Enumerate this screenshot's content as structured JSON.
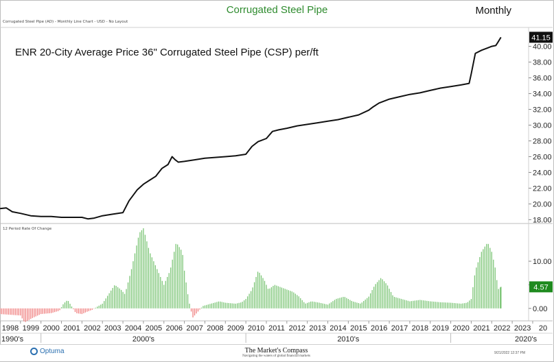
{
  "header": {
    "title": "Corrugated Steel Pipe",
    "frequency": "Monthly",
    "subcaption": "Corrugated Steel Pipe (AD) - Monthly Line Chart - USD - No Layout"
  },
  "footer": {
    "logo": "Optuma",
    "brand": "The Market's Compass",
    "tagline": "Navigating the waters of global financial markets",
    "timestamp": "9/21/2022 12:37 PM"
  },
  "colors": {
    "price_line": "#111111",
    "roc_positive": "#7cc576",
    "roc_negative": "#f08080",
    "last_price_badge": "#111111",
    "last_roc_badge": "#1e8a1e",
    "title": "#2e8b2e"
  },
  "chart_data": [
    {
      "type": "line",
      "title": "ENR 20-City Average Price 36\" Corrugated Steel Pipe (CSP) per/ft",
      "ylim": [
        17.6,
        42.4
      ],
      "yticks": [
        "18.00",
        "20.00",
        "22.00",
        "24.00",
        "26.00",
        "28.00",
        "30.00",
        "32.00",
        "34.00",
        "36.00",
        "38.00",
        "40.00"
      ],
      "last_value_label": "41.15",
      "xlim": [
        1998.0,
        2023.8
      ],
      "series": [
        {
          "x": [
            1998.0,
            1998.3,
            1998.6,
            1999.0,
            1999.5,
            2000.0,
            2000.5,
            2001.0,
            2001.5,
            2002.0,
            2002.3,
            2002.6,
            2003.0,
            2003.5,
            2004.0,
            2004.3,
            2004.7,
            2005.0,
            2005.3,
            2005.6,
            2005.9,
            2006.2,
            2006.4,
            2006.55,
            2006.7,
            2007.0,
            2007.5,
            2008.0,
            2008.5,
            2009.0,
            2009.5,
            2010.0,
            2010.3,
            2010.6,
            2011.0,
            2011.3,
            2011.6,
            2012.0,
            2012.5,
            2013.0,
            2013.5,
            2014.0,
            2014.5,
            2015.0,
            2015.5,
            2016.0,
            2016.2,
            2016.5,
            2017.0,
            2017.5,
            2018.0,
            2018.5,
            2019.0,
            2019.5,
            2020.0,
            2020.5,
            2020.9,
            2021.0,
            2021.2,
            2021.5,
            2021.8,
            2022.0,
            2022.2,
            2022.3,
            2022.45
          ],
          "y": [
            19.4,
            19.5,
            19.0,
            18.8,
            18.5,
            18.4,
            18.4,
            18.3,
            18.3,
            18.3,
            18.1,
            18.2,
            18.5,
            18.7,
            18.9,
            20.4,
            21.8,
            22.5,
            23.0,
            23.5,
            24.5,
            25.0,
            26.0,
            25.6,
            25.3,
            25.4,
            25.6,
            25.8,
            25.9,
            26.0,
            26.1,
            26.3,
            27.3,
            27.9,
            28.3,
            29.2,
            29.4,
            29.6,
            29.9,
            30.1,
            30.3,
            30.5,
            30.7,
            31.0,
            31.3,
            31.9,
            32.3,
            32.8,
            33.3,
            33.6,
            33.9,
            34.1,
            34.4,
            34.7,
            34.9,
            35.1,
            35.3,
            36.5,
            39.1,
            39.5,
            39.8,
            40.0,
            40.1,
            40.5,
            41.15
          ]
        }
      ]
    },
    {
      "type": "bar",
      "title": "12 Period Rate Of Change",
      "ylim": [
        -2.5,
        18.0
      ],
      "yticks": [
        "0.00",
        "5.00",
        "10.00"
      ],
      "last_value_label": "4.57",
      "keyframes_x": [
        1998.0,
        1999.0,
        1999.2,
        1999.6,
        2000.0,
        2000.5,
        2000.9,
        2001.1,
        2001.3,
        2001.7,
        2002.0,
        2002.2,
        2002.5,
        2002.8,
        2003.0,
        2003.3,
        2003.6,
        2003.9,
        2004.1,
        2004.4,
        2004.6,
        2004.8,
        2005.0,
        2005.3,
        2005.7,
        2006.0,
        2006.3,
        2006.6,
        2006.9,
        2007.0,
        2007.2,
        2007.4,
        2007.6,
        2007.9,
        2008.3,
        2008.7,
        2009.0,
        2009.5,
        2009.8,
        2010.0,
        2010.3,
        2010.6,
        2010.9,
        2011.1,
        2011.4,
        2011.7,
        2012.0,
        2012.3,
        2012.6,
        2012.9,
        2013.2,
        2013.6,
        2014.0,
        2014.4,
        2014.8,
        2015.2,
        2015.6,
        2016.0,
        2016.3,
        2016.6,
        2016.9,
        2017.2,
        2017.6,
        2018.0,
        2018.5,
        2019.0,
        2019.5,
        2020.0,
        2020.5,
        2020.8,
        2021.0,
        2021.2,
        2021.5,
        2021.8,
        2022.0,
        2022.2,
        2022.3,
        2022.45
      ],
      "keyframes_y": [
        -1.2,
        -1.5,
        -3.0,
        -2.0,
        -1.2,
        -1.0,
        -0.5,
        1.0,
        1.8,
        -1.0,
        -1.2,
        -0.8,
        -0.3,
        0.5,
        1.0,
        3.0,
        5.0,
        4.0,
        3.0,
        8.0,
        12.0,
        16.0,
        17.0,
        12.0,
        8.0,
        5.0,
        8.0,
        14.0,
        12.0,
        8.0,
        2.0,
        -2.0,
        -1.0,
        0.5,
        1.0,
        1.5,
        1.2,
        1.0,
        1.3,
        2.0,
        4.0,
        8.0,
        6.0,
        4.0,
        5.0,
        4.5,
        4.0,
        3.5,
        2.5,
        1.0,
        1.5,
        1.2,
        0.8,
        2.0,
        2.5,
        1.5,
        1.0,
        2.5,
        5.0,
        6.5,
        5.0,
        2.5,
        2.0,
        1.5,
        1.8,
        1.5,
        1.3,
        1.2,
        1.0,
        1.2,
        2.0,
        8.0,
        12.0,
        14.0,
        12.0,
        8.0,
        4.0,
        4.57
      ]
    }
  ],
  "x_axis": {
    "years": [
      "1998",
      "1999",
      "2000",
      "2001",
      "2002",
      "2003",
      "2004",
      "2005",
      "2006",
      "2007",
      "2008",
      "2009",
      "2010",
      "2011",
      "2012",
      "2013",
      "2014",
      "2015",
      "2016",
      "2017",
      "2018",
      "2019",
      "2020",
      "2021",
      "2022",
      "2023",
      "20"
    ],
    "decades": [
      "1990's",
      "2000's",
      "2010's",
      "2020's"
    ]
  }
}
